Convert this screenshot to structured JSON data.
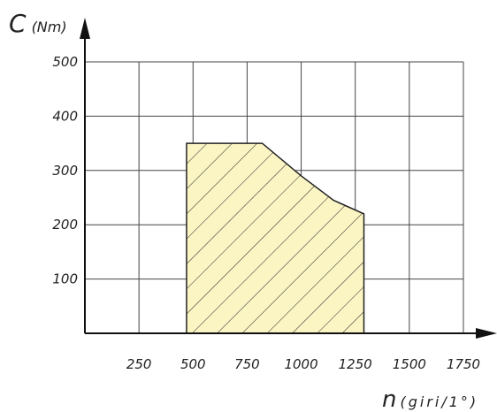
{
  "chart_data": {
    "type": "area",
    "title": "",
    "ylabel": {
      "symbol": "C",
      "unit": "(Nm)"
    },
    "xlabel": {
      "symbol": "n",
      "unit": "(giri/1°)"
    },
    "xlim": [
      0,
      1750
    ],
    "ylim": [
      0,
      500
    ],
    "xticks": [
      250,
      500,
      750,
      1000,
      1250,
      1500,
      1750
    ],
    "yticks": [
      100,
      200,
      300,
      400,
      500
    ],
    "grid": true,
    "region": {
      "fill": "#fbf5c4",
      "stroke": "#222222",
      "hatch": "diagonal",
      "points": [
        {
          "x": 470,
          "y": 0
        },
        {
          "x": 470,
          "y": 350
        },
        {
          "x": 820,
          "y": 350
        },
        {
          "x": 1000,
          "y": 290
        },
        {
          "x": 1150,
          "y": 245
        },
        {
          "x": 1290,
          "y": 220
        },
        {
          "x": 1290,
          "y": 0
        }
      ]
    }
  }
}
